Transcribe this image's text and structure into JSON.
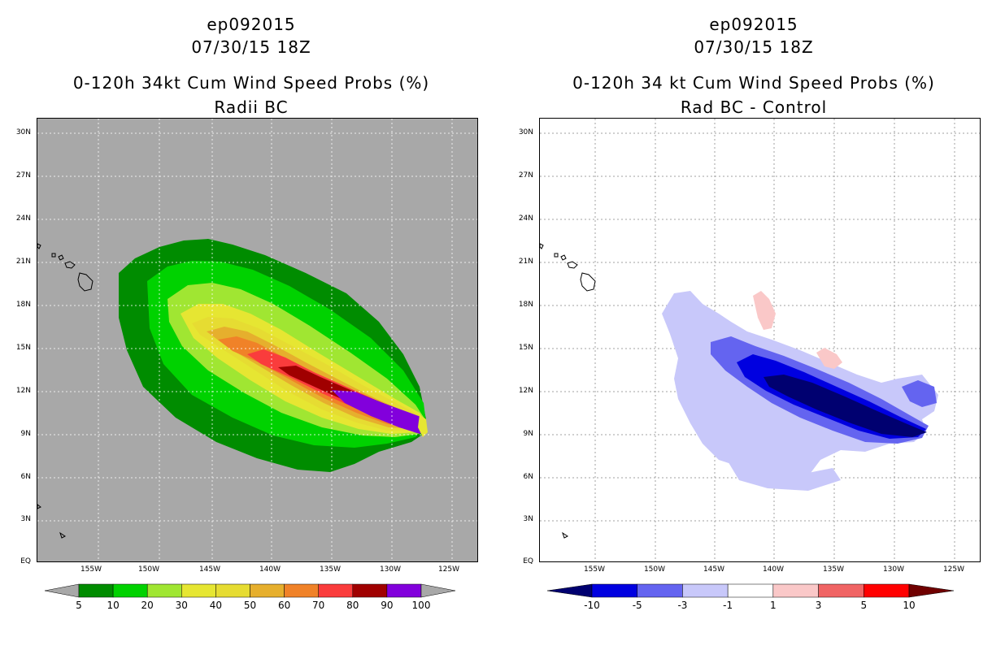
{
  "left_panel": {
    "storm_id": "ep092015",
    "datetime": "07/30/15 18Z",
    "title": "0-120h 34kt Cum Wind Speed Probs (%)",
    "subtitle": "Radii BC",
    "background_color": "#a8a8a8",
    "lat_labels": [
      "30N",
      "27N",
      "24N",
      "21N",
      "18N",
      "15N",
      "12N",
      "9N",
      "6N",
      "3N",
      "EQ"
    ],
    "lon_labels": [
      "155W",
      "150W",
      "145W",
      "140W",
      "135W",
      "130W",
      "125W"
    ],
    "colorbar": {
      "colors": [
        "#008c00",
        "#00d200",
        "#a0e632",
        "#e6e632",
        "#e6dc32",
        "#e6af2d",
        "#f08228",
        "#fa3c3c",
        "#a00000",
        "#8200dc"
      ],
      "labels": [
        "5",
        "10",
        "20",
        "30",
        "40",
        "50",
        "60",
        "70",
        "80",
        "90",
        "100"
      ],
      "under_color": "#a8a8a8",
      "over_color": "#a8a8a8"
    }
  },
  "right_panel": {
    "storm_id": "ep092015",
    "datetime": "07/30/15 18Z",
    "title": "0-120h 34 kt Cum Wind Speed Probs (%)",
    "subtitle": "Rad BC - Control",
    "background_color": "#ffffff",
    "lat_labels": [
      "30N",
      "27N",
      "24N",
      "21N",
      "18N",
      "15N",
      "12N",
      "9N",
      "6N",
      "3N",
      "EQ"
    ],
    "lon_labels": [
      "155W",
      "150W",
      "145W",
      "140W",
      "135W",
      "130W",
      "125W"
    ],
    "colorbar": {
      "colors": [
        "#0000e0",
        "#6464f0",
        "#c8c8fa",
        "#ffffff",
        "#fac8c8",
        "#f06464",
        "#ff0000"
      ],
      "labels": [
        "-10",
        "-5",
        "-3",
        "-1",
        "1",
        "3",
        "5",
        "10"
      ],
      "under_color": "#000070",
      "over_color": "#700000"
    }
  }
}
